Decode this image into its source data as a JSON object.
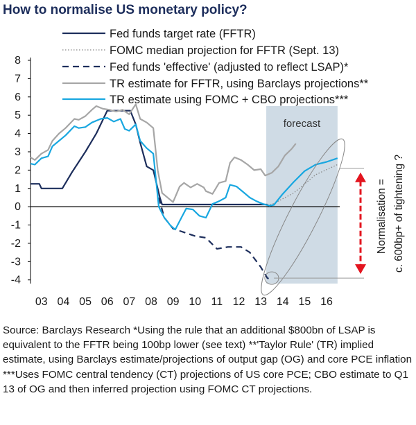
{
  "chart_data": {
    "type": "line",
    "title": "How to normalise US monetary policy?",
    "xlabel": "",
    "ylabel": "",
    "xlim": [
      2003,
      2017.1
    ],
    "ylim": [
      -4.2,
      8
    ],
    "yticks": [
      8,
      7,
      6,
      5,
      4,
      3,
      2,
      1,
      0,
      -1,
      -2,
      -3,
      -4
    ],
    "xtick_labels": [
      "03",
      "04",
      "05",
      "06",
      "07",
      "08",
      "09",
      "10",
      "11",
      "12",
      "13",
      "14",
      "15",
      "16"
    ],
    "series": [
      {
        "name": "Fed funds target rate (FFTR)",
        "style": "solid",
        "color": "#1d2e5c",
        "points": [
          [
            2003.0,
            1.25
          ],
          [
            2003.4,
            1.25
          ],
          [
            2003.5,
            1.0
          ],
          [
            2004.0,
            1.0
          ],
          [
            2004.45,
            1.0
          ],
          [
            2004.9,
            1.9
          ],
          [
            2005.5,
            3.0
          ],
          [
            2006.0,
            4.0
          ],
          [
            2006.5,
            5.25
          ],
          [
            2007.0,
            5.25
          ],
          [
            2007.55,
            5.25
          ],
          [
            2007.8,
            4.5
          ],
          [
            2008.0,
            3.5
          ],
          [
            2008.3,
            2.2
          ],
          [
            2008.6,
            2.0
          ],
          [
            2008.9,
            0.5
          ],
          [
            2009.0,
            0.12
          ],
          [
            2013.8,
            0.12
          ]
        ]
      },
      {
        "name": "FOMC median projection for FFTR (Sept. 13)",
        "style": "dotted",
        "color": "#888888",
        "points": [
          [
            2013.8,
            0.12
          ],
          [
            2014.0,
            0.12
          ],
          [
            2015.0,
            0.75
          ],
          [
            2016.0,
            1.75
          ],
          [
            2017.0,
            2.3
          ]
        ]
      },
      {
        "name": "Fed funds 'effective' (adjusted to reflect LSAP)*",
        "style": "dashed",
        "color": "#1d2e5c",
        "points": [
          [
            2008.85,
            0.5
          ],
          [
            2009.1,
            -0.6
          ],
          [
            2009.5,
            -1.2
          ],
          [
            2010.0,
            -1.4
          ],
          [
            2010.5,
            -1.6
          ],
          [
            2011.0,
            -1.7
          ],
          [
            2011.5,
            -2.3
          ],
          [
            2012.0,
            -2.2
          ],
          [
            2012.6,
            -2.2
          ],
          [
            2013.0,
            -2.5
          ],
          [
            2013.5,
            -3.3
          ],
          [
            2013.8,
            -3.9
          ],
          [
            2014.0,
            -4.0
          ]
        ]
      },
      {
        "name": "TR estimate for FFTR, using Barclays projections**",
        "style": "solid",
        "color": "#a6a6a6",
        "points": [
          [
            2003.0,
            2.7
          ],
          [
            2003.2,
            2.55
          ],
          [
            2003.5,
            2.9
          ],
          [
            2003.8,
            3.1
          ],
          [
            2004.0,
            3.6
          ],
          [
            2004.3,
            4.0
          ],
          [
            2004.6,
            4.3
          ],
          [
            2005.0,
            4.8
          ],
          [
            2005.2,
            4.75
          ],
          [
            2005.5,
            4.95
          ],
          [
            2005.8,
            5.3
          ],
          [
            2006.0,
            5.5
          ],
          [
            2006.3,
            5.35
          ],
          [
            2006.6,
            5.3
          ],
          [
            2006.9,
            5.2
          ],
          [
            2007.2,
            5.3
          ],
          [
            2007.5,
            5.05
          ],
          [
            2007.8,
            5.6
          ],
          [
            2008.0,
            4.8
          ],
          [
            2008.3,
            4.6
          ],
          [
            2008.6,
            4.3
          ],
          [
            2008.8,
            2.0
          ],
          [
            2009.0,
            0.75
          ],
          [
            2009.3,
            0.45
          ],
          [
            2009.5,
            0.25
          ],
          [
            2009.8,
            1.1
          ],
          [
            2010.0,
            1.3
          ],
          [
            2010.3,
            1.05
          ],
          [
            2010.6,
            1.25
          ],
          [
            2010.9,
            1.05
          ],
          [
            2011.0,
            0.85
          ],
          [
            2011.3,
            0.7
          ],
          [
            2011.6,
            1.3
          ],
          [
            2011.9,
            1.4
          ],
          [
            2012.1,
            2.4
          ],
          [
            2012.3,
            2.7
          ],
          [
            2012.6,
            2.55
          ],
          [
            2012.9,
            2.3
          ],
          [
            2013.2,
            2.0
          ],
          [
            2013.5,
            2.05
          ],
          [
            2013.7,
            1.7
          ],
          [
            2014.0,
            1.85
          ],
          [
            2014.3,
            2.2
          ],
          [
            2014.6,
            2.8
          ],
          [
            2014.9,
            3.15
          ],
          [
            2015.1,
            3.45
          ]
        ]
      },
      {
        "name": "TR estimate using FOMC + CBO projections***",
        "style": "solid",
        "color": "#19a7e0",
        "points": [
          [
            2003.0,
            2.35
          ],
          [
            2003.2,
            2.3
          ],
          [
            2003.5,
            2.65
          ],
          [
            2003.8,
            2.75
          ],
          [
            2004.0,
            3.3
          ],
          [
            2004.3,
            3.6
          ],
          [
            2004.6,
            3.9
          ],
          [
            2005.0,
            4.4
          ],
          [
            2005.2,
            4.3
          ],
          [
            2005.5,
            4.35
          ],
          [
            2005.8,
            4.6
          ],
          [
            2006.2,
            4.8
          ],
          [
            2006.5,
            4.85
          ],
          [
            2006.8,
            4.65
          ],
          [
            2007.1,
            4.8
          ],
          [
            2007.3,
            4.25
          ],
          [
            2007.5,
            4.15
          ],
          [
            2007.8,
            4.5
          ],
          [
            2008.0,
            3.6
          ],
          [
            2008.3,
            3.2
          ],
          [
            2008.6,
            2.9
          ],
          [
            2008.85,
            0.0
          ],
          [
            2009.1,
            -0.6
          ],
          [
            2009.4,
            -1.05
          ],
          [
            2009.6,
            -1.25
          ],
          [
            2009.9,
            -0.55
          ],
          [
            2010.1,
            -0.1
          ],
          [
            2010.4,
            -0.15
          ],
          [
            2010.7,
            -0.5
          ],
          [
            2011.0,
            -0.6
          ],
          [
            2011.3,
            0.15
          ],
          [
            2011.6,
            0.3
          ],
          [
            2011.9,
            0.5
          ],
          [
            2012.1,
            1.2
          ],
          [
            2012.4,
            1.1
          ],
          [
            2012.7,
            0.8
          ],
          [
            2013.0,
            0.5
          ],
          [
            2013.3,
            0.3
          ],
          [
            2013.6,
            0.15
          ],
          [
            2013.9,
            0.05
          ],
          [
            2014.1,
            0.1
          ],
          [
            2014.5,
            0.7
          ],
          [
            2015.0,
            1.35
          ],
          [
            2015.5,
            1.95
          ],
          [
            2016.0,
            2.3
          ],
          [
            2016.5,
            2.45
          ],
          [
            2017.0,
            2.65
          ]
        ]
      }
    ],
    "annotations": {
      "forecast_label": "forecast",
      "forecast_range": [
        2013.75,
        2017.0
      ],
      "normalisation_label": "Normalisation =",
      "normalisation_sublabel": "c. 600bp+ of tightening ?",
      "arrow_range": [
        -3.9,
        2.1
      ]
    }
  },
  "source": "Source: Barclays Research  *Using the rule that an additional $800bn of LSAP is equivalent to the FFTR being 100bp lower (see text) **'Taylor Rule' (TR) implied estimate, using Barclays estimate/projections of output gap (OG) and core PCE inflation ***Uses FOMC central tendency (CT) projections of US core PCE; CBO estimate to Q1 13 of OG and then inferred projection using FOMC CT projections.",
  "colors": {
    "title": "#1d2e5c",
    "forecast_shade": "#cfdbe5",
    "arrow": "#e3151f",
    "axis": "#000000"
  }
}
